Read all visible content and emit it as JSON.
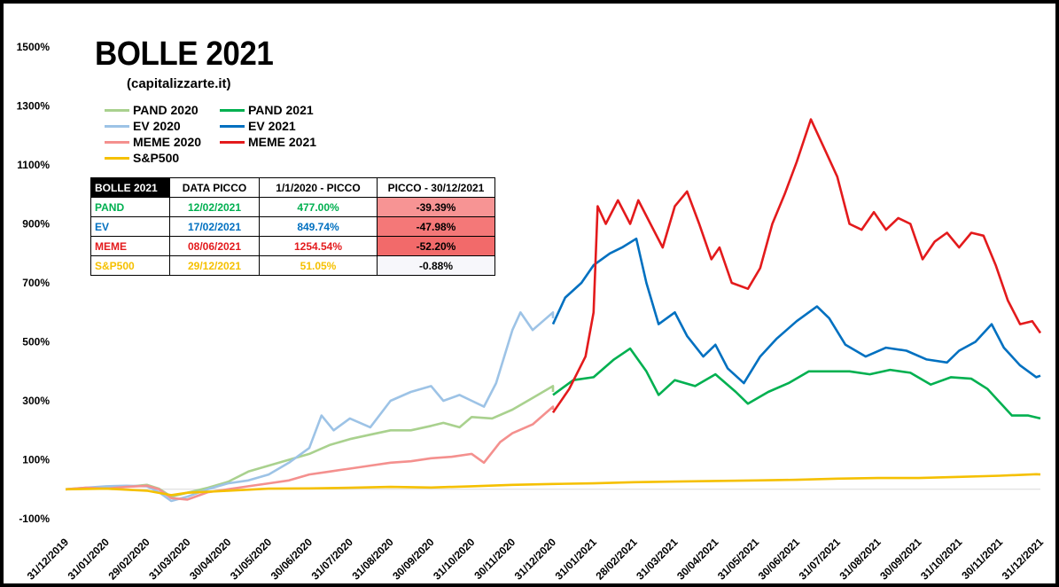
{
  "title": "BOLLE 2021",
  "subtitle": "(capitalizzarte.it)",
  "legend": [
    {
      "label": "PAND 2020",
      "color": "#a9d18e"
    },
    {
      "label": "PAND 2021",
      "color": "#00b050"
    },
    {
      "label": "EV 2020",
      "color": "#9dc3e6"
    },
    {
      "label": "EV 2021",
      "color": "#0070c0"
    },
    {
      "label": "MEME 2020",
      "color": "#f4908e"
    },
    {
      "label": "MEME 2021",
      "color": "#e31a1c"
    },
    {
      "label": "S&P500",
      "color": "#f5c000"
    }
  ],
  "table": {
    "headers": [
      "BOLLE 2021",
      "DATA PICCO",
      "1/1/2020 - PICCO",
      "PICCO - 30/12/2021"
    ],
    "rows": [
      {
        "name": "PAND",
        "date": "12/02/2021",
        "gain": "477.00%",
        "drop": "-39.39%",
        "color": "#00b050",
        "drop_bg": "#f79494"
      },
      {
        "name": "EV",
        "date": "17/02/2021",
        "gain": "849.74%",
        "drop": "-47.98%",
        "color": "#0070c0",
        "drop_bg": "#f47878"
      },
      {
        "name": "MEME",
        "date": "08/06/2021",
        "gain": "1254.54%",
        "drop": "-52.20%",
        "color": "#e31a1c",
        "drop_bg": "#f26a6a"
      },
      {
        "name": "S&P500",
        "date": "29/12/2021",
        "gain": "51.05%",
        "drop": "-0.88%",
        "color": "#f5c000",
        "drop_bg": "#f7f7fb"
      }
    ]
  },
  "chart_data": {
    "type": "line",
    "y_ticks": [
      "-100%",
      "100%",
      "300%",
      "500%",
      "700%",
      "900%",
      "1100%",
      "1300%",
      "1500%"
    ],
    "y_tick_values": [
      -100,
      100,
      300,
      500,
      700,
      900,
      1100,
      1300,
      1500
    ],
    "x_labels": [
      "31/12/2019",
      "31/01/2020",
      "29/02/2020",
      "31/03/2020",
      "30/04/2020",
      "31/05/2020",
      "30/06/2020",
      "31/07/2020",
      "31/08/2020",
      "30/09/2020",
      "31/10/2020",
      "30/11/2020",
      "31/12/2020",
      "31/01/2021",
      "28/02/2021",
      "31/03/2021",
      "30/04/2021",
      "31/05/2021",
      "30/06/2021",
      "31/07/2021",
      "31/08/2021",
      "30/09/2021",
      "31/10/2021",
      "30/11/2021",
      "31/12/2021"
    ],
    "x_unit": "months since 31/12/2019",
    "ylim": [
      -100,
      1500
    ],
    "series": [
      {
        "name": "PAND 2020",
        "color": "#a9d18e",
        "points": [
          [
            0,
            0
          ],
          [
            0.5,
            3
          ],
          [
            1,
            5
          ],
          [
            1.5,
            8
          ],
          [
            2,
            15
          ],
          [
            2.3,
            2
          ],
          [
            2.6,
            -25
          ],
          [
            3,
            -12
          ],
          [
            3.5,
            5
          ],
          [
            4,
            25
          ],
          [
            4.5,
            60
          ],
          [
            5,
            80
          ],
          [
            5.5,
            100
          ],
          [
            6,
            120
          ],
          [
            6.5,
            150
          ],
          [
            7,
            170
          ],
          [
            7.5,
            185
          ],
          [
            8,
            200
          ],
          [
            8.5,
            200
          ],
          [
            9,
            215
          ],
          [
            9.3,
            225
          ],
          [
            9.7,
            210
          ],
          [
            10,
            245
          ],
          [
            10.5,
            240
          ],
          [
            11,
            270
          ],
          [
            11.5,
            310
          ],
          [
            12,
            350
          ],
          [
            12,
            330
          ]
        ]
      },
      {
        "name": "PAND 2021",
        "color": "#00b050",
        "points": [
          [
            12,
            320
          ],
          [
            12.5,
            370
          ],
          [
            13,
            380
          ],
          [
            13.5,
            440
          ],
          [
            13.9,
            477
          ],
          [
            14.3,
            400
          ],
          [
            14.6,
            320
          ],
          [
            15,
            370
          ],
          [
            15.5,
            350
          ],
          [
            16,
            390
          ],
          [
            16.5,
            330
          ],
          [
            16.8,
            290
          ],
          [
            17.3,
            330
          ],
          [
            17.8,
            360
          ],
          [
            18.3,
            400
          ],
          [
            18.8,
            400
          ],
          [
            19.3,
            400
          ],
          [
            19.8,
            390
          ],
          [
            20.3,
            405
          ],
          [
            20.8,
            395
          ],
          [
            21.3,
            355
          ],
          [
            21.8,
            380
          ],
          [
            22.3,
            375
          ],
          [
            22.7,
            340
          ],
          [
            23,
            295
          ],
          [
            23.3,
            250
          ],
          [
            23.7,
            250
          ],
          [
            24,
            240
          ]
        ]
      },
      {
        "name": "EV 2020",
        "color": "#9dc3e6",
        "points": [
          [
            0,
            0
          ],
          [
            0.5,
            5
          ],
          [
            1,
            10
          ],
          [
            1.5,
            12
          ],
          [
            2,
            10
          ],
          [
            2.3,
            -10
          ],
          [
            2.6,
            -40
          ],
          [
            3,
            -25
          ],
          [
            3.5,
            0
          ],
          [
            4,
            20
          ],
          [
            4.5,
            30
          ],
          [
            5,
            50
          ],
          [
            5.5,
            90
          ],
          [
            6,
            140
          ],
          [
            6.3,
            250
          ],
          [
            6.6,
            200
          ],
          [
            7,
            240
          ],
          [
            7.5,
            210
          ],
          [
            8,
            300
          ],
          [
            8.5,
            330
          ],
          [
            9,
            350
          ],
          [
            9.3,
            300
          ],
          [
            9.7,
            320
          ],
          [
            10,
            300
          ],
          [
            10.3,
            280
          ],
          [
            10.6,
            360
          ],
          [
            11,
            540
          ],
          [
            11.2,
            600
          ],
          [
            11.5,
            540
          ],
          [
            12,
            600
          ],
          [
            12,
            580
          ]
        ]
      },
      {
        "name": "EV 2021",
        "color": "#0070c0",
        "points": [
          [
            12,
            560
          ],
          [
            12.3,
            650
          ],
          [
            12.7,
            700
          ],
          [
            13,
            760
          ],
          [
            13.4,
            800
          ],
          [
            13.7,
            820
          ],
          [
            14.05,
            849.74
          ],
          [
            14.3,
            700
          ],
          [
            14.6,
            560
          ],
          [
            15,
            600
          ],
          [
            15.3,
            520
          ],
          [
            15.7,
            450
          ],
          [
            16,
            490
          ],
          [
            16.3,
            410
          ],
          [
            16.7,
            360
          ],
          [
            17.1,
            450
          ],
          [
            17.5,
            510
          ],
          [
            18,
            570
          ],
          [
            18.5,
            620
          ],
          [
            18.8,
            580
          ],
          [
            19.2,
            490
          ],
          [
            19.7,
            450
          ],
          [
            20.2,
            480
          ],
          [
            20.7,
            470
          ],
          [
            21.2,
            440
          ],
          [
            21.7,
            430
          ],
          [
            22,
            470
          ],
          [
            22.4,
            500
          ],
          [
            22.8,
            560
          ],
          [
            23.1,
            480
          ],
          [
            23.5,
            420
          ],
          [
            23.9,
            380
          ],
          [
            24,
            385
          ]
        ]
      },
      {
        "name": "MEME 2020",
        "color": "#f4908e",
        "points": [
          [
            0,
            0
          ],
          [
            0.5,
            5
          ],
          [
            1,
            2
          ],
          [
            1.5,
            8
          ],
          [
            2,
            12
          ],
          [
            2.3,
            0
          ],
          [
            2.6,
            -30
          ],
          [
            3,
            -35
          ],
          [
            3.5,
            -10
          ],
          [
            4,
            0
          ],
          [
            4.5,
            10
          ],
          [
            5,
            20
          ],
          [
            5.5,
            30
          ],
          [
            6,
            50
          ],
          [
            6.5,
            60
          ],
          [
            7,
            70
          ],
          [
            7.5,
            80
          ],
          [
            8,
            90
          ],
          [
            8.5,
            95
          ],
          [
            9,
            105
          ],
          [
            9.5,
            110
          ],
          [
            10,
            120
          ],
          [
            10.3,
            90
          ],
          [
            10.7,
            160
          ],
          [
            11,
            190
          ],
          [
            11.5,
            220
          ],
          [
            12,
            280
          ],
          [
            12,
            270
          ]
        ]
      },
      {
        "name": "MEME 2021",
        "color": "#e31a1c",
        "points": [
          [
            12,
            260
          ],
          [
            12.4,
            340
          ],
          [
            12.8,
            450
          ],
          [
            13,
            600
          ],
          [
            13.1,
            960
          ],
          [
            13.3,
            900
          ],
          [
            13.6,
            980
          ],
          [
            13.9,
            900
          ],
          [
            14.1,
            980
          ],
          [
            14.4,
            900
          ],
          [
            14.7,
            820
          ],
          [
            15,
            960
          ],
          [
            15.3,
            1010
          ],
          [
            15.6,
            900
          ],
          [
            15.9,
            780
          ],
          [
            16.1,
            820
          ],
          [
            16.4,
            700
          ],
          [
            16.8,
            680
          ],
          [
            17.1,
            750
          ],
          [
            17.4,
            900
          ],
          [
            17.7,
            1000
          ],
          [
            18,
            1110
          ],
          [
            18.35,
            1254.54
          ],
          [
            18.7,
            1150
          ],
          [
            19,
            1060
          ],
          [
            19.3,
            900
          ],
          [
            19.6,
            880
          ],
          [
            19.9,
            940
          ],
          [
            20.2,
            880
          ],
          [
            20.5,
            920
          ],
          [
            20.8,
            900
          ],
          [
            21.1,
            780
          ],
          [
            21.4,
            840
          ],
          [
            21.7,
            870
          ],
          [
            22,
            820
          ],
          [
            22.3,
            870
          ],
          [
            22.6,
            860
          ],
          [
            22.9,
            760
          ],
          [
            23.2,
            640
          ],
          [
            23.5,
            560
          ],
          [
            23.8,
            570
          ],
          [
            24,
            530
          ]
        ]
      },
      {
        "name": "S&P500",
        "color": "#f5c000",
        "points": [
          [
            0,
            0
          ],
          [
            1,
            2
          ],
          [
            2,
            -5
          ],
          [
            2.6,
            -20
          ],
          [
            3,
            -12
          ],
          [
            4,
            -5
          ],
          [
            5,
            2
          ],
          [
            6,
            3
          ],
          [
            7,
            5
          ],
          [
            8,
            8
          ],
          [
            9,
            6
          ],
          [
            10,
            10
          ],
          [
            11,
            15
          ],
          [
            12,
            18
          ],
          [
            13,
            20
          ],
          [
            14,
            24
          ],
          [
            15,
            26
          ],
          [
            16,
            28
          ],
          [
            17,
            30
          ],
          [
            18,
            32
          ],
          [
            19,
            36
          ],
          [
            20,
            38
          ],
          [
            21,
            38
          ],
          [
            22,
            42
          ],
          [
            23,
            46
          ],
          [
            23.9,
            51.05
          ],
          [
            24,
            50
          ]
        ]
      }
    ]
  }
}
